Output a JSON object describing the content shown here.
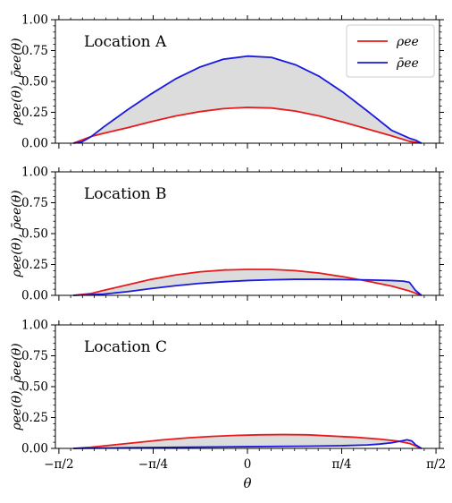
{
  "chart_data": [
    {
      "type": "line",
      "annotation": "Location A",
      "ylabel": "ρee(θ), ρ̄ee(θ)",
      "xlabel": "",
      "xlim": [
        -1.6,
        1.6
      ],
      "ylim": [
        0,
        1.0
      ],
      "yticks": [
        "0.00",
        "0.25",
        "0.50",
        "0.75",
        "1.00"
      ],
      "xtick_labels": [
        "",
        "",
        "",
        "",
        ""
      ],
      "fill_between": true,
      "legend": {
        "placement": "top-right",
        "entries": [
          "ρee",
          "ρ̄ee"
        ]
      },
      "series": [
        {
          "name": "ρee",
          "color": "#e8191b",
          "x": [
            -1.45,
            -1.3,
            -1.2,
            -1.0,
            -0.8,
            -0.6,
            -0.4,
            -0.2,
            0.0,
            0.2,
            0.4,
            0.6,
            0.8,
            1.0,
            1.2,
            1.35,
            1.45
          ],
          "y": [
            0.0,
            0.055,
            0.08,
            0.125,
            0.175,
            0.22,
            0.255,
            0.28,
            0.29,
            0.285,
            0.26,
            0.22,
            0.17,
            0.115,
            0.06,
            0.015,
            0.0
          ]
        },
        {
          "name": "ρ̄ee",
          "color": "#1a1adf",
          "x": [
            -1.45,
            -1.38,
            -1.3,
            -1.2,
            -1.0,
            -0.8,
            -0.6,
            -0.4,
            -0.2,
            0.0,
            0.2,
            0.4,
            0.6,
            0.8,
            1.0,
            1.2,
            1.35,
            1.4,
            1.45
          ],
          "y": [
            0.0,
            0.01,
            0.055,
            0.13,
            0.27,
            0.4,
            0.52,
            0.615,
            0.68,
            0.705,
            0.695,
            0.635,
            0.54,
            0.41,
            0.26,
            0.105,
            0.04,
            0.025,
            0.0
          ]
        }
      ]
    },
    {
      "type": "line",
      "annotation": "Location B",
      "ylabel": "ρee(θ), ρ̄ee(θ)",
      "xlabel": "",
      "xlim": [
        -1.6,
        1.6
      ],
      "ylim": [
        0,
        1.0
      ],
      "yticks": [
        "0.00",
        "0.25",
        "0.50",
        "0.75",
        "1.00"
      ],
      "xtick_labels": [
        "",
        "",
        "",
        "",
        ""
      ],
      "fill_between": true,
      "series": [
        {
          "name": "ρee",
          "color": "#e8191b",
          "x": [
            -1.45,
            -1.3,
            -1.2,
            -1.0,
            -0.8,
            -0.6,
            -0.4,
            -0.2,
            0.0,
            0.2,
            0.4,
            0.6,
            0.8,
            1.0,
            1.2,
            1.35,
            1.45
          ],
          "y": [
            0.0,
            0.015,
            0.04,
            0.085,
            0.13,
            0.165,
            0.19,
            0.205,
            0.21,
            0.21,
            0.2,
            0.18,
            0.15,
            0.115,
            0.075,
            0.035,
            0.0
          ]
        },
        {
          "name": "ρ̄ee",
          "color": "#1a1adf",
          "x": [
            -1.45,
            -1.2,
            -1.0,
            -0.8,
            -0.6,
            -0.4,
            -0.2,
            0.0,
            0.2,
            0.4,
            0.6,
            0.8,
            1.0,
            1.2,
            1.3,
            1.35,
            1.4,
            1.45
          ],
          "y": [
            0.0,
            0.01,
            0.03,
            0.055,
            0.078,
            0.097,
            0.11,
            0.12,
            0.126,
            0.13,
            0.13,
            0.128,
            0.125,
            0.12,
            0.115,
            0.105,
            0.04,
            0.0
          ]
        }
      ]
    },
    {
      "type": "line",
      "annotation": "Location C",
      "ylabel": "ρee(θ), ρ̄ee(θ)",
      "xlabel": "θ",
      "xlim": [
        -1.6,
        1.6
      ],
      "ylim": [
        0,
        1.0
      ],
      "yticks": [
        "0.00",
        "0.25",
        "0.50",
        "0.75",
        "1.00"
      ],
      "xtick_labels": [
        "−π/2",
        "−π/4",
        "0",
        "π/4",
        "π/2"
      ],
      "fill_between": true,
      "series": [
        {
          "name": "ρee",
          "color": "#e8191b",
          "x": [
            -1.45,
            -1.3,
            -1.1,
            -0.9,
            -0.7,
            -0.5,
            -0.3,
            -0.1,
            0.1,
            0.3,
            0.5,
            0.7,
            0.9,
            1.1,
            1.25,
            1.35,
            1.45
          ],
          "y": [
            0.0,
            0.01,
            0.03,
            0.05,
            0.07,
            0.085,
            0.097,
            0.105,
            0.11,
            0.112,
            0.11,
            0.1,
            0.09,
            0.075,
            0.06,
            0.04,
            0.0
          ]
        },
        {
          "name": "ρ̄ee",
          "color": "#1a1adf",
          "x": [
            -1.45,
            -1.0,
            -0.5,
            0.0,
            0.5,
            0.8,
            1.0,
            1.1,
            1.2,
            1.28,
            1.33,
            1.37,
            1.4,
            1.45
          ],
          "y": [
            0.0,
            0.005,
            0.01,
            0.014,
            0.018,
            0.022,
            0.028,
            0.035,
            0.045,
            0.06,
            0.07,
            0.06,
            0.03,
            0.0
          ]
        }
      ]
    }
  ]
}
